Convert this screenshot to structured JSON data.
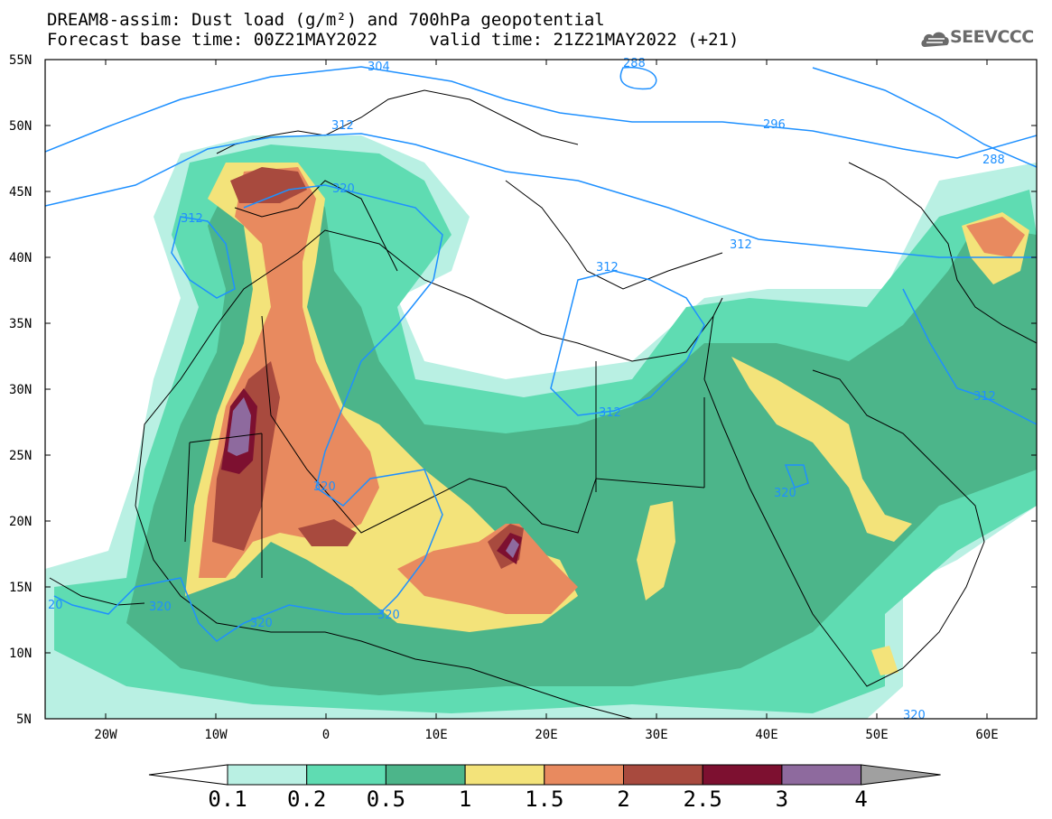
{
  "title": {
    "line1": "DREAM8-assim: Dust load (g/m²) and 700hPa geopotential",
    "line2": "Forecast base time: 00Z21MAY2022     valid time: 21Z21MAY2022 (+21)"
  },
  "logo": {
    "text": "SEEVCCC",
    "icon": "cloud-logo-icon"
  },
  "map": {
    "lat_labels": [
      "55N",
      "50N",
      "45N",
      "40N",
      "35N",
      "30N",
      "25N",
      "20N",
      "15N",
      "10N",
      "5N"
    ],
    "lon_labels": [
      "20W",
      "10W",
      "0",
      "10E",
      "20E",
      "30E",
      "40E",
      "50E",
      "60E"
    ],
    "contour_labels": [
      {
        "text": "304"
      },
      {
        "text": "288"
      },
      {
        "text": "312"
      },
      {
        "text": "296"
      },
      {
        "text": "312"
      },
      {
        "text": "320"
      },
      {
        "text": "288"
      },
      {
        "text": "312"
      },
      {
        "text": "312"
      },
      {
        "text": "312"
      },
      {
        "text": "312"
      },
      {
        "text": "320"
      },
      {
        "text": "320"
      },
      {
        "text": "320"
      },
      {
        "text": "320"
      },
      {
        "text": "320"
      },
      {
        "text": "320"
      },
      {
        "text": "20"
      }
    ]
  },
  "colorbar": {
    "ticks": [
      "0.1",
      "0.2",
      "0.5",
      "1",
      "1.5",
      "2",
      "2.5",
      "3",
      "4"
    ],
    "colors": [
      "#ffffff",
      "#b9f0e3",
      "#5fdcb2",
      "#4cb58a",
      "#f3e37a",
      "#e88a5f",
      "#a84a3e",
      "#7d1030",
      "#8e6a9e",
      "#a0a0a0"
    ]
  },
  "legend_colors": {
    "geopotential_contour": "#1e90ff",
    "coastline": "#000000"
  }
}
